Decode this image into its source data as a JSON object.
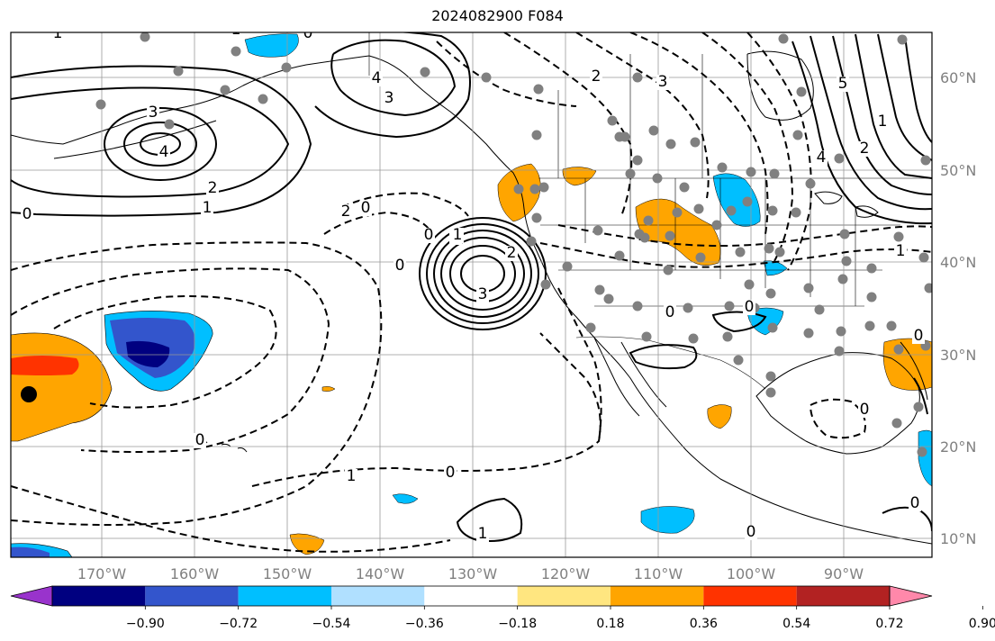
{
  "title": "2024082900 F084",
  "map": {
    "lon_labels": [
      "170°W",
      "160°W",
      "150°W",
      "140°W",
      "130°W",
      "120°W",
      "110°W",
      "100°W",
      "90°W"
    ],
    "lat_labels": [
      "60°N",
      "50°N",
      "40°N",
      "30°N",
      "20°N",
      "10°N"
    ],
    "lon_range": [
      -180,
      -80
    ],
    "lat_range": [
      8,
      65
    ],
    "grid": true,
    "contour_labels": [
      "1",
      "0",
      "3",
      "4",
      "2",
      "1",
      "0",
      "0",
      "1",
      "2",
      "3",
      "2",
      "0",
      "2",
      "3",
      "5",
      "4",
      "1",
      "2",
      "0",
      "0",
      "1",
      "3",
      "4",
      "1",
      "0",
      "0",
      "1",
      "0",
      "0",
      "0",
      "1",
      "0",
      "1",
      "0"
    ]
  },
  "colorbar": {
    "tick_labels": [
      "−0.90",
      "−0.72",
      "−0.54",
      "−0.36",
      "−0.18",
      "0.18",
      "0.36",
      "0.54",
      "0.72",
      "0.90"
    ],
    "colors": [
      "#9933cc",
      "#000080",
      "#3355cc",
      "#00bfff",
      "#b0e0ff",
      "#ffffff",
      "#ffe680",
      "#ffa500",
      "#ff3300",
      "#b22222",
      "#ff88aa"
    ]
  }
}
